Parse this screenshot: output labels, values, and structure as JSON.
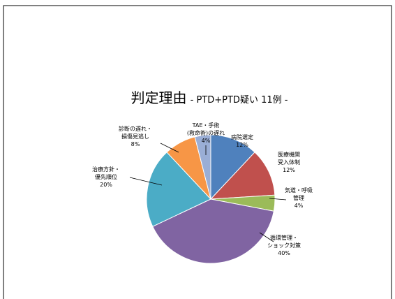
{
  "chart_data": {
    "type": "pie",
    "title": "判定理由",
    "subtitle": "- PTD+PTD疑い 11例 -",
    "categories": [
      "病院選定",
      "医療機関\n受入体制",
      "気道・呼吸\n管理",
      "循環管理・\nショック対策",
      "治療方針・\n優先順位",
      "診断の遅れ・\n損傷見逃し",
      "TAE・手術\n(救命術)の遅れ"
    ],
    "values": [
      12,
      12,
      4,
      40,
      20,
      8,
      4
    ],
    "value_labels": [
      "12%",
      "12%",
      "4%",
      "40%",
      "20%",
      "8%",
      "4%"
    ],
    "colors": [
      "#4f81bd",
      "#c0504d",
      "#9bbb59",
      "#8064a2",
      "#4bacc6",
      "#f79646",
      "#9aaed6"
    ]
  }
}
